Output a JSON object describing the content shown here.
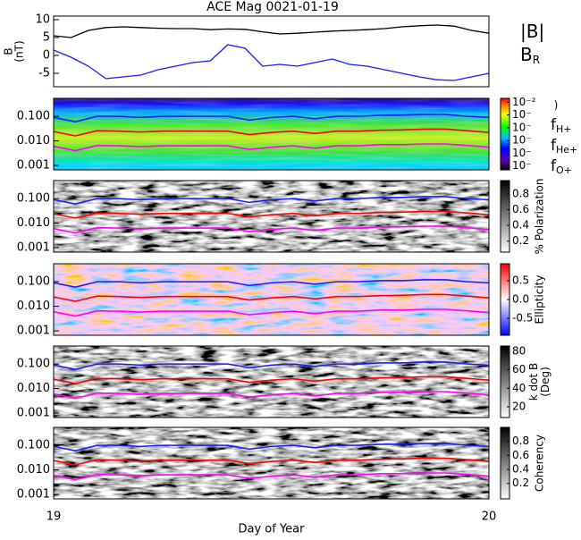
{
  "chart_data": [
    {
      "type": "line",
      "title": "ACE Mag 0021-01-19",
      "ylabel": [
        "B",
        "(nT)"
      ],
      "xlim": [
        19,
        20
      ],
      "ylim": [
        -8.75,
        11
      ],
      "yticks": [
        -5,
        0,
        5,
        10
      ],
      "x": [
        19,
        19.04,
        19.08,
        19.12,
        19.16,
        19.2,
        19.24,
        19.28,
        19.32,
        19.36,
        19.4,
        19.44,
        19.48,
        19.52,
        19.56,
        19.6,
        19.64,
        19.68,
        19.72,
        19.76,
        19.8,
        19.84,
        19.88,
        19.92,
        19.96,
        20
      ],
      "series": [
        {
          "name": "|B|",
          "color": "#000000",
          "values": [
            5.5,
            5,
            7,
            7.8,
            8,
            7.8,
            7.6,
            7.5,
            7.5,
            7.2,
            7.4,
            7.3,
            6.6,
            6,
            6.2,
            6.5,
            6.8,
            7,
            7.2,
            7.5,
            8,
            8.3,
            8.5,
            8.2,
            7,
            6.2
          ]
        },
        {
          "name": "B",
          "subscript": "R",
          "color": "#1a1aff",
          "values": [
            1.5,
            -0.5,
            -3,
            -6.5,
            -6,
            -5.5,
            -4,
            -3,
            -2,
            -1.5,
            3,
            2,
            -3,
            -2.5,
            -3,
            -2,
            -1,
            -2.5,
            -3,
            -4,
            -5,
            -6,
            -6.8,
            -7,
            -6,
            -5
          ]
        }
      ]
    },
    {
      "type": "spectrogram",
      "colormap": "rainbow",
      "clabel": [
        ")"
      ],
      "xlim": [
        19,
        20
      ],
      "ylim": [
        0.00066,
        0.54
      ],
      "log_y": true,
      "yticks": [
        0.001,
        {
          "value": 0.01,
          "label": "0.010"
        },
        {
          "value": 0.1,
          "label": "0.100"
        }
      ],
      "clim": [
        -7.3,
        -1.7
      ],
      "cticks": [
        {
          "value": -2,
          "label": "10⁻²"
        },
        {
          "value": -3,
          "label": "10⁻"
        },
        {
          "value": -4,
          "label": "10⁻"
        },
        {
          "value": -5,
          "label": "10⁻"
        },
        {
          "value": -6,
          "label": "10⁻"
        },
        {
          "value": -7,
          "label": "10⁻"
        }
      ],
      "x": [
        19,
        19.05,
        19.1,
        19.15,
        19.2,
        19.25,
        19.3,
        19.35,
        19.4,
        19.45,
        19.5,
        19.55,
        19.6,
        19.65,
        19.7,
        19.75,
        19.8,
        19.85,
        19.9,
        19.95,
        20
      ],
      "series": [
        {
          "name": "f",
          "subscript": "H+",
          "color": "#1a1aff",
          "values": [
            0.09,
            0.06,
            0.1,
            0.1,
            0.09,
            0.1,
            0.1,
            0.1,
            0.1,
            0.07,
            0.09,
            0.1,
            0.08,
            0.1,
            0.1,
            0.11,
            0.11,
            0.12,
            0.12,
            0.1,
            0.09
          ]
        },
        {
          "name": "f",
          "subscript": "He+",
          "color": "#ff0000",
          "values": [
            0.024,
            0.016,
            0.026,
            0.025,
            0.023,
            0.025,
            0.025,
            0.025,
            0.025,
            0.018,
            0.022,
            0.025,
            0.02,
            0.025,
            0.025,
            0.027,
            0.028,
            0.03,
            0.03,
            0.026,
            0.022
          ]
        },
        {
          "name": "f",
          "subscript": "O+",
          "color": "#ff00ff",
          "values": [
            0.006,
            0.004,
            0.0065,
            0.0063,
            0.0058,
            0.0063,
            0.0063,
            0.0063,
            0.0063,
            0.0045,
            0.0055,
            0.0063,
            0.005,
            0.0063,
            0.0063,
            0.007,
            0.007,
            0.0075,
            0.0075,
            0.0065,
            0.0055
          ]
        }
      ]
    },
    {
      "type": "spectrogram",
      "colormap": "gray_r",
      "clabel": [
        "% Polarization"
      ],
      "xlim": [
        19,
        20
      ],
      "ylim": [
        0.00066,
        0.54
      ],
      "log_y": true,
      "yticks": [
        0.001,
        {
          "value": 0.01,
          "label": "0.010"
        },
        {
          "value": 0.1,
          "label": "0.100"
        }
      ],
      "clim": [
        0.06,
        0.97
      ],
      "cticks": [
        0.2,
        0.4,
        0.6,
        0.8
      ],
      "x": [
        19,
        19.05,
        19.1,
        19.15,
        19.2,
        19.25,
        19.3,
        19.35,
        19.4,
        19.45,
        19.5,
        19.55,
        19.6,
        19.65,
        19.7,
        19.75,
        19.8,
        19.85,
        19.9,
        19.95,
        20
      ],
      "series": [
        {
          "color": "#1a1aff",
          "values": [
            0.09,
            0.06,
            0.1,
            0.1,
            0.09,
            0.1,
            0.1,
            0.1,
            0.1,
            0.07,
            0.09,
            0.1,
            0.08,
            0.1,
            0.1,
            0.11,
            0.11,
            0.12,
            0.12,
            0.1,
            0.09
          ]
        },
        {
          "color": "#ff0000",
          "values": [
            0.024,
            0.016,
            0.026,
            0.025,
            0.023,
            0.025,
            0.025,
            0.025,
            0.025,
            0.018,
            0.022,
            0.025,
            0.02,
            0.025,
            0.025,
            0.027,
            0.028,
            0.03,
            0.03,
            0.026,
            0.022
          ]
        },
        {
          "color": "#ff00ff",
          "values": [
            0.006,
            0.004,
            0.0065,
            0.0063,
            0.0058,
            0.0063,
            0.0063,
            0.0063,
            0.0063,
            0.0045,
            0.0055,
            0.0063,
            0.005,
            0.0063,
            0.0063,
            0.007,
            0.007,
            0.0075,
            0.0075,
            0.0065,
            0.0055
          ]
        }
      ]
    },
    {
      "type": "spectrogram",
      "colormap": "bwr",
      "clabel": [
        "Ellipticity"
      ],
      "xlim": [
        19,
        20
      ],
      "ylim": [
        0.00066,
        0.54
      ],
      "log_y": true,
      "yticks": [
        0.001,
        {
          "value": 0.01,
          "label": "0.010"
        },
        {
          "value": 0.1,
          "label": "0.100"
        }
      ],
      "clim": [
        -0.95,
        0.95
      ],
      "cticks": [
        -0.5,
        {
          "value": 0,
          "label": "0.0"
        },
        0.5
      ],
      "x": [
        19,
        19.05,
        19.1,
        19.15,
        19.2,
        19.25,
        19.3,
        19.35,
        19.4,
        19.45,
        19.5,
        19.55,
        19.6,
        19.65,
        19.7,
        19.75,
        19.8,
        19.85,
        19.9,
        19.95,
        20
      ],
      "series": [
        {
          "color": "#1a1aff",
          "values": [
            0.09,
            0.06,
            0.1,
            0.1,
            0.09,
            0.1,
            0.1,
            0.1,
            0.1,
            0.07,
            0.09,
            0.1,
            0.08,
            0.1,
            0.1,
            0.11,
            0.11,
            0.12,
            0.12,
            0.1,
            0.09
          ]
        },
        {
          "color": "#ff0000",
          "values": [
            0.024,
            0.016,
            0.026,
            0.025,
            0.023,
            0.025,
            0.025,
            0.025,
            0.025,
            0.018,
            0.022,
            0.025,
            0.02,
            0.025,
            0.025,
            0.027,
            0.028,
            0.03,
            0.03,
            0.026,
            0.022
          ]
        },
        {
          "color": "#ff00ff",
          "values": [
            0.006,
            0.004,
            0.0065,
            0.0063,
            0.0058,
            0.0063,
            0.0063,
            0.0063,
            0.0063,
            0.0045,
            0.0055,
            0.0063,
            0.005,
            0.0063,
            0.0063,
            0.007,
            0.007,
            0.0075,
            0.0075,
            0.0065,
            0.0055
          ]
        }
      ]
    },
    {
      "type": "spectrogram",
      "colormap": "gray_r",
      "clabel": [
        "k dot B",
        "(Deg)"
      ],
      "xlim": [
        19,
        20
      ],
      "ylim": [
        0.00066,
        0.54
      ],
      "log_y": true,
      "yticks": [
        0.001,
        {
          "value": 0.01,
          "label": "0.010"
        },
        {
          "value": 0.1,
          "label": "0.100"
        }
      ],
      "clim": [
        8.4,
        85.8
      ],
      "cticks": [
        20,
        40,
        60,
        80
      ],
      "x": [
        19,
        19.05,
        19.1,
        19.15,
        19.2,
        19.25,
        19.3,
        19.35,
        19.4,
        19.45,
        19.5,
        19.55,
        19.6,
        19.65,
        19.7,
        19.75,
        19.8,
        19.85,
        19.9,
        19.95,
        20
      ],
      "series": [
        {
          "color": "#1a1aff",
          "values": [
            0.09,
            0.06,
            0.1,
            0.1,
            0.09,
            0.1,
            0.1,
            0.1,
            0.1,
            0.07,
            0.09,
            0.1,
            0.08,
            0.1,
            0.1,
            0.11,
            0.11,
            0.12,
            0.12,
            0.1,
            0.09
          ]
        },
        {
          "color": "#ff0000",
          "values": [
            0.024,
            0.016,
            0.026,
            0.025,
            0.023,
            0.025,
            0.025,
            0.025,
            0.025,
            0.018,
            0.022,
            0.025,
            0.02,
            0.025,
            0.025,
            0.027,
            0.028,
            0.03,
            0.03,
            0.026,
            0.022
          ]
        },
        {
          "color": "#ff00ff",
          "values": [
            0.006,
            0.004,
            0.0065,
            0.0063,
            0.0058,
            0.0063,
            0.0063,
            0.0063,
            0.0063,
            0.0045,
            0.0055,
            0.0063,
            0.005,
            0.0063,
            0.0063,
            0.007,
            0.007,
            0.0075,
            0.0075,
            0.0065,
            0.0055
          ]
        }
      ]
    },
    {
      "type": "spectrogram",
      "colormap": "gray_r",
      "clabel": [
        "Coherency"
      ],
      "xlim": [
        19,
        20
      ],
      "ylim": [
        0.00066,
        0.54
      ],
      "log_y": true,
      "xticks": [
        19,
        20
      ],
      "xlabel": "Day of Year",
      "yticks": [
        0.001,
        {
          "value": 0.01,
          "label": "0.010"
        },
        {
          "value": 0.1,
          "label": "0.100"
        }
      ],
      "clim": [
        -0.02,
        1.0
      ],
      "cticks": [
        0.2,
        0.4,
        0.6,
        0.8
      ],
      "x": [
        19,
        19.05,
        19.1,
        19.15,
        19.2,
        19.25,
        19.3,
        19.35,
        19.4,
        19.45,
        19.5,
        19.55,
        19.6,
        19.65,
        19.7,
        19.75,
        19.8,
        19.85,
        19.9,
        19.95,
        20
      ],
      "series": [
        {
          "color": "#1a1aff",
          "values": [
            0.09,
            0.06,
            0.1,
            0.1,
            0.09,
            0.1,
            0.1,
            0.1,
            0.1,
            0.07,
            0.09,
            0.1,
            0.08,
            0.1,
            0.1,
            0.11,
            0.11,
            0.12,
            0.12,
            0.1,
            0.09
          ]
        },
        {
          "color": "#ff0000",
          "values": [
            0.024,
            0.016,
            0.026,
            0.025,
            0.023,
            0.025,
            0.025,
            0.025,
            0.025,
            0.018,
            0.022,
            0.025,
            0.02,
            0.025,
            0.025,
            0.027,
            0.028,
            0.03,
            0.03,
            0.026,
            0.022
          ]
        },
        {
          "color": "#ff00ff",
          "values": [
            0.006,
            0.004,
            0.0065,
            0.0063,
            0.0058,
            0.0063,
            0.0063,
            0.0063,
            0.0063,
            0.0045,
            0.0055,
            0.0063,
            0.005,
            0.0063,
            0.0063,
            0.007,
            0.007,
            0.0075,
            0.0075,
            0.0065,
            0.0055
          ]
        }
      ]
    }
  ]
}
